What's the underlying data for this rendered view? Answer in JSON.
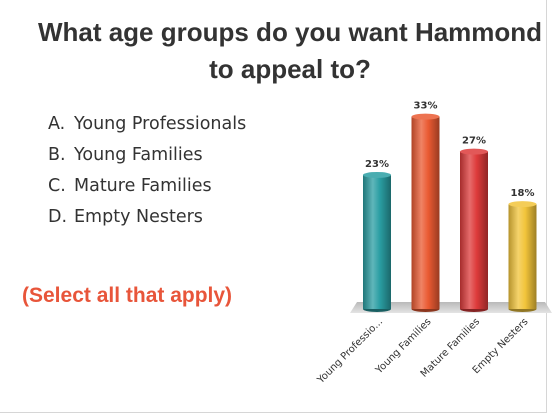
{
  "slide": {
    "title_line1": "What age groups do you want Hammond",
    "title_line2": "to appeal to?",
    "options": [
      {
        "letter": "A.",
        "text": "Young Professionals"
      },
      {
        "letter": "B.",
        "text": "Young Families"
      },
      {
        "letter": "C.",
        "text": "Mature Families"
      },
      {
        "letter": "D.",
        "text": "Empty Nesters"
      }
    ],
    "note": "(Select all that apply)"
  },
  "chart_data": {
    "type": "bar",
    "title": "",
    "xlabel": "",
    "ylabel": "",
    "categories": [
      "Young Professio...",
      "Young Families",
      "Mature Families",
      "Empty Nesters"
    ],
    "values": [
      23,
      33,
      27,
      18
    ],
    "value_labels": [
      "23%",
      "33%",
      "27%",
      "18%"
    ],
    "ylim": [
      0,
      35
    ],
    "grid": false,
    "legend": "none",
    "colors": [
      "#2a9ea3",
      "#ea5a32",
      "#dd3a3a",
      "#f2c43a"
    ]
  }
}
